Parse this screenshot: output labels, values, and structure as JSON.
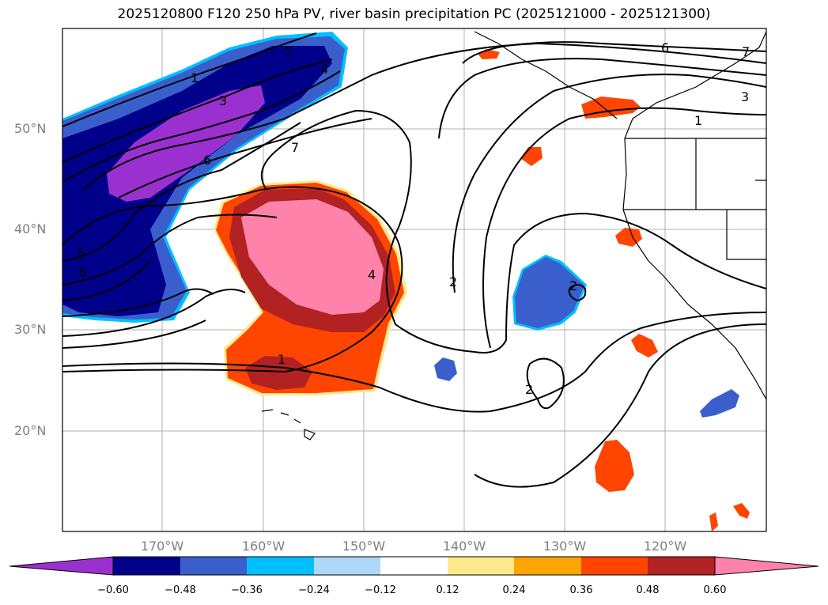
{
  "title": "2025120800 F120 250 hPa PV, river basin precipitation PC (2025121000 - 2025121300)",
  "lat_labels": [
    "50°N",
    "40°N",
    "30°N",
    "20°N"
  ],
  "lon_labels": [
    "170°W",
    "160°W",
    "150°W",
    "140°W",
    "130°W",
    "120°W"
  ],
  "colorbar": {
    "ticks": [
      "−0.60",
      "−0.48",
      "−0.36",
      "−0.24",
      "−0.12",
      "0.12",
      "0.24",
      "0.36",
      "0.48",
      "0.60"
    ],
    "colors": [
      "#9b30d0",
      "#00008b",
      "#3a5fcd",
      "#00bfff",
      "#add8f7",
      "#ffffff",
      "#ffe98a",
      "#ffa500",
      "#ff4500",
      "#b22222",
      "#ff82ab"
    ],
    "extend": "both"
  },
  "colors": {
    "purple": "#9b30d0",
    "navy": "#00008b",
    "blue": "#3a5fcd",
    "cyan": "#00bfff",
    "lightblue": "#add8f7",
    "yellow": "#ffe98a",
    "orange": "#ffa500",
    "redorange": "#ff4500",
    "darkred": "#b22222",
    "pink": "#ff82ab",
    "grid": "#b0b0b0",
    "axis_label": "#7f7f7f"
  },
  "contour_labels": [
    "1",
    "3",
    "5",
    "4",
    "6",
    "7",
    "5",
    "6",
    "4",
    "1",
    "2",
    "2",
    "2",
    "6",
    "7",
    "3",
    "1"
  ]
}
